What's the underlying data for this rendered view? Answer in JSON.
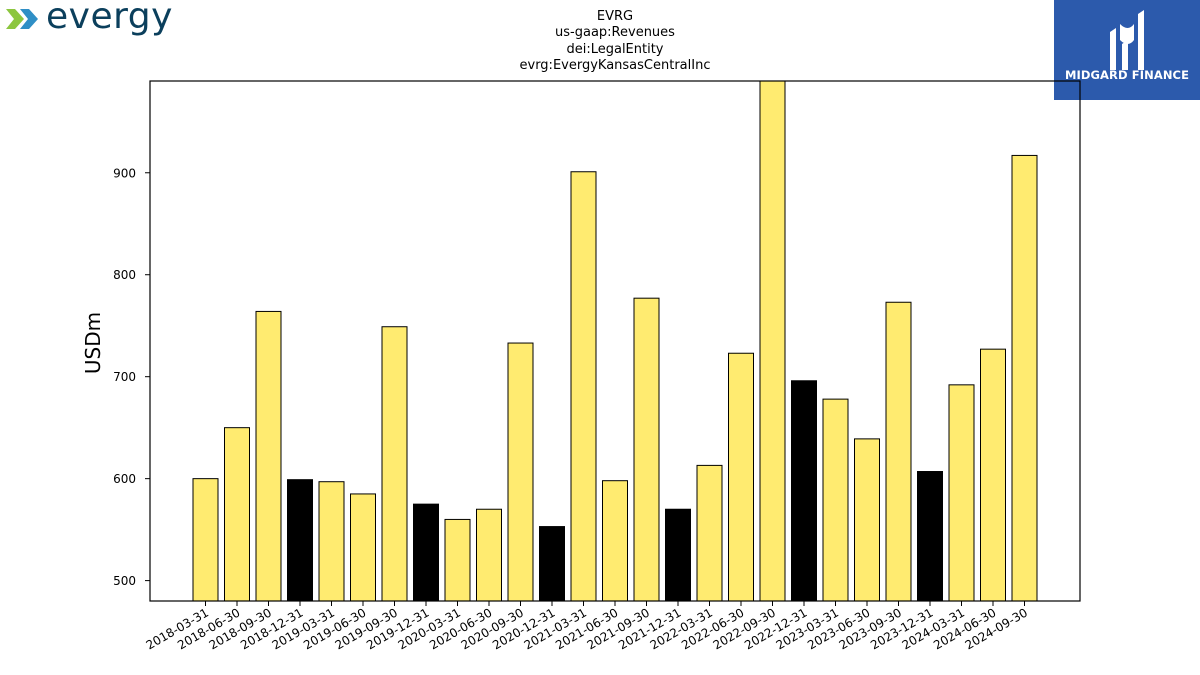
{
  "branding": {
    "left_logo": "evergy",
    "left_logo_colors": [
      "#0b3f5c",
      "#8cc63f",
      "#2f8fc6"
    ],
    "right_logo": "MIDGARD FINANCE",
    "right_logo_bg": "#2c5aac"
  },
  "chart_data": {
    "type": "bar",
    "title_lines": [
      "EVRG",
      "us-gaap:Revenues",
      "dei:LegalEntity",
      "evrg:EvergyKansasCentralInc"
    ],
    "xlabel": "",
    "ylabel": "USDm",
    "ylim": [
      480,
      990
    ],
    "yticks": [
      500,
      600,
      700,
      800,
      900
    ],
    "grid": false,
    "legend": "none",
    "colors": {
      "quarter": "#ffeb70",
      "year_end": "#000000",
      "edge": "#000000"
    },
    "categories": [
      "2018-03-31",
      "2018-06-30",
      "2018-09-30",
      "2018-12-31",
      "2019-03-31",
      "2019-06-30",
      "2019-09-30",
      "2019-12-31",
      "2020-03-31",
      "2020-06-30",
      "2020-09-30",
      "2020-12-31",
      "2021-03-31",
      "2021-06-30",
      "2021-09-30",
      "2021-12-31",
      "2022-03-31",
      "2022-06-30",
      "2022-09-30",
      "2022-12-31",
      "2023-03-31",
      "2023-06-30",
      "2023-09-30",
      "2023-12-31",
      "2024-03-31",
      "2024-06-30",
      "2024-09-30"
    ],
    "values": [
      600,
      650,
      764,
      599,
      597,
      585,
      749,
      575,
      560,
      570,
      733,
      553,
      901,
      598,
      777,
      570,
      613,
      723,
      995,
      696,
      678,
      639,
      773,
      607,
      692,
      727,
      917
    ],
    "highlight": [
      false,
      false,
      false,
      true,
      false,
      false,
      false,
      true,
      false,
      false,
      false,
      true,
      false,
      false,
      false,
      true,
      false,
      false,
      false,
      true,
      false,
      false,
      false,
      true,
      false,
      false,
      false
    ]
  }
}
